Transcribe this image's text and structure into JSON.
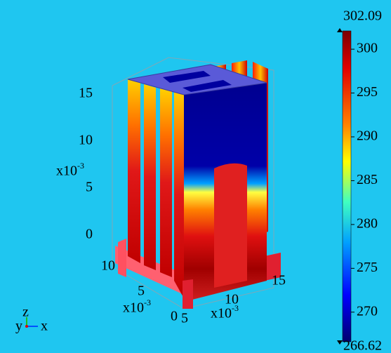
{
  "chart_data": {
    "type": "surface3d",
    "colorbar": {
      "max": 302.09,
      "min": 266.62,
      "ticks": [
        270,
        275,
        280,
        285,
        290,
        295,
        300
      ]
    },
    "axes": {
      "z": {
        "ticks": [
          0,
          5,
          10,
          15
        ],
        "multiplier": "x10",
        "exponent": "-3"
      },
      "y": {
        "ticks": [
          0,
          5,
          10
        ],
        "multiplier": "x10",
        "exponent": "-3"
      },
      "x": {
        "ticks": [
          5,
          10,
          15
        ],
        "multiplier": "x10",
        "exponent": "-3"
      }
    },
    "triad": {
      "x": "x",
      "y": "y",
      "z": "z"
    }
  }
}
